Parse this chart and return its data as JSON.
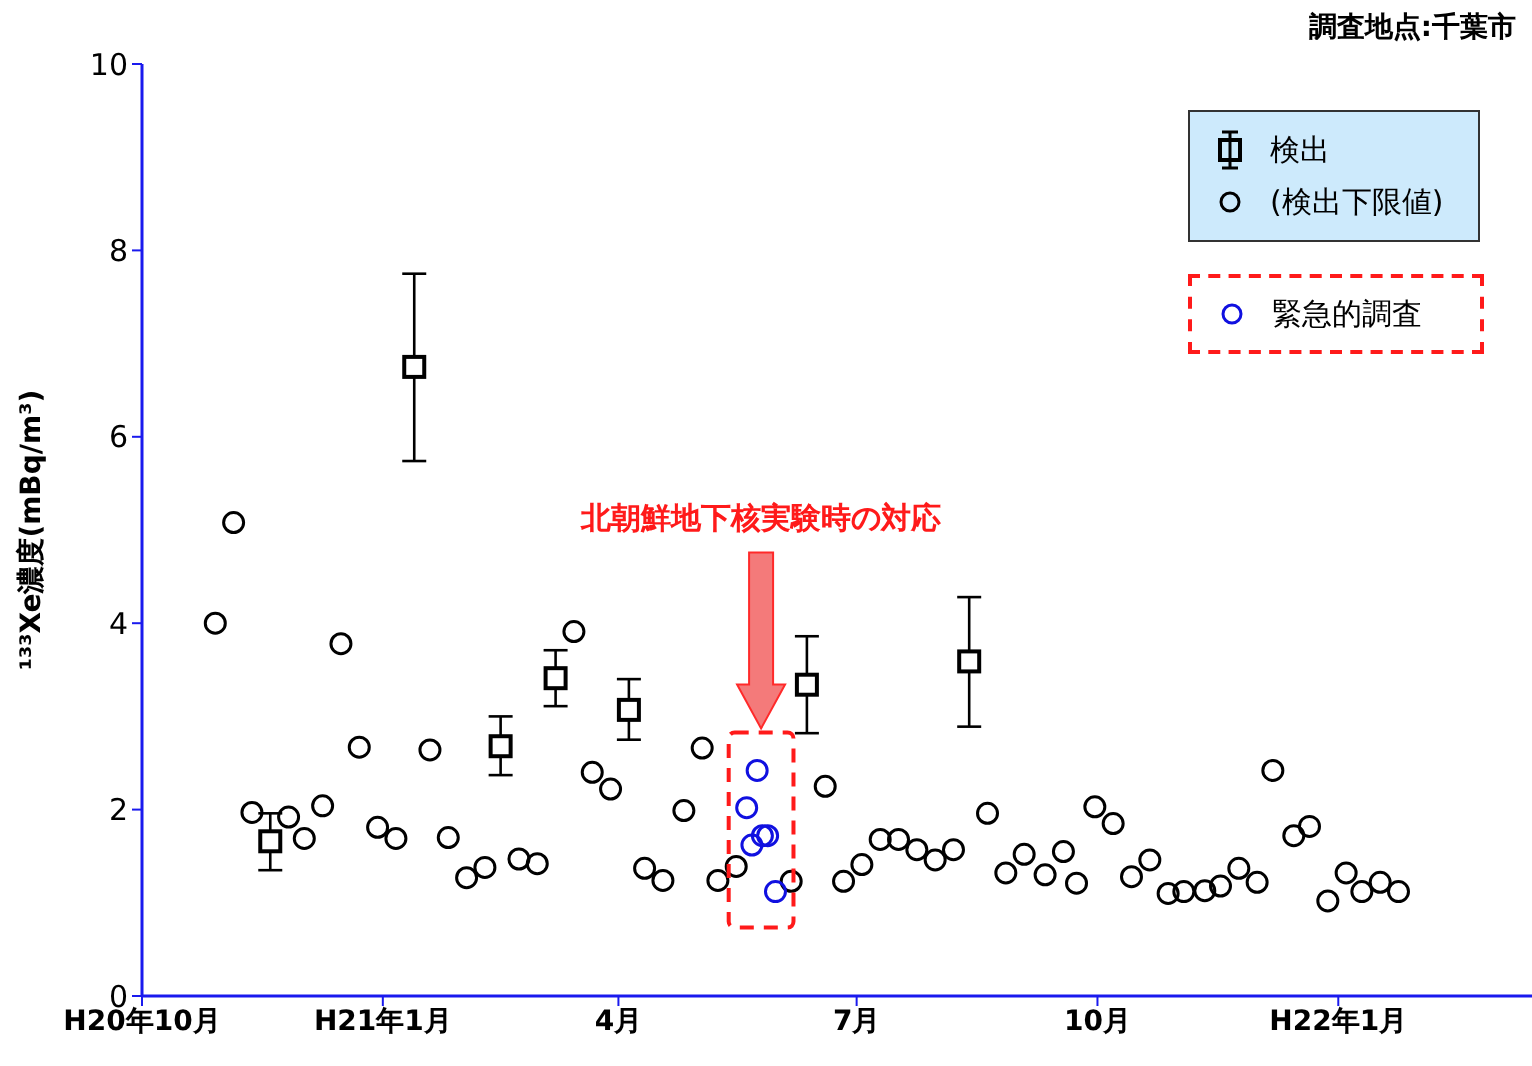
{
  "chart_data": {
    "type": "scatter",
    "ylabel": "¹³³Xe濃度(mBq/m³)",
    "xlim": [
      "2008-10-01",
      "2010-03-16"
    ],
    "xticks": [
      {
        "value": "2008-10-01",
        "label": "H20年10月"
      },
      {
        "value": "2009-01-01",
        "label": "H21年1月"
      },
      {
        "value": "2009-04-01",
        "label": "4月"
      },
      {
        "value": "2009-07-01",
        "label": "7月"
      },
      {
        "value": "2009-10-01",
        "label": "10月"
      },
      {
        "value": "2010-01-01",
        "label": "H22年1月"
      }
    ],
    "ylim": [
      0,
      10
    ],
    "yticks": [
      0,
      2,
      4,
      6,
      8,
      10
    ],
    "legend": "top right",
    "annotations": [
      "調査地点:千葉市",
      "北朝鮮地下核実験時の対応"
    ],
    "series": [
      {
        "name": "検出",
        "color": "#000000",
        "marker": "square",
        "x": [
          "2008-11-19",
          "2009-01-13",
          "2009-02-15",
          "2009-03-08",
          "2009-04-05",
          "2009-06-12",
          "2009-08-13"
        ],
        "values": [
          1.66,
          6.75,
          2.68,
          3.41,
          3.07,
          3.34,
          3.59
        ],
        "errors": [
          [
            1.35,
            1.96
          ],
          [
            5.74,
            7.75
          ],
          [
            2.37,
            3.0
          ],
          [
            3.11,
            3.71
          ],
          [
            2.75,
            3.4
          ],
          [
            2.82,
            3.86
          ],
          [
            2.89,
            4.28
          ]
        ]
      },
      {
        "name": "(検出下限値)",
        "color": "#000000",
        "marker": "circle",
        "x": [
          "2008-10-29",
          "2008-11-05",
          "2008-11-12",
          "2008-11-26",
          "2008-12-02",
          "2008-12-09",
          "2008-12-16",
          "2008-12-23",
          "2008-12-30",
          "2009-01-06",
          "2009-01-19",
          "2009-01-26",
          "2009-02-02",
          "2009-02-09",
          "2009-02-22",
          "2009-03-01",
          "2009-03-15",
          "2009-03-22",
          "2009-03-29",
          "2009-04-11",
          "2009-04-18",
          "2009-04-26",
          "2009-05-03",
          "2009-05-09",
          "2009-05-16",
          "2009-06-06",
          "2009-06-19",
          "2009-06-26",
          "2009-07-03",
          "2009-07-10",
          "2009-07-17",
          "2009-07-24",
          "2009-07-31",
          "2009-08-07",
          "2009-08-20",
          "2009-08-27",
          "2009-09-03",
          "2009-09-11",
          "2009-09-18",
          "2009-09-23",
          "2009-09-30",
          "2009-10-07",
          "2009-10-14",
          "2009-10-21",
          "2009-10-28",
          "2009-11-03",
          "2009-11-11",
          "2009-11-17",
          "2009-11-24",
          "2009-12-01",
          "2009-12-07",
          "2009-12-15",
          "2009-12-21",
          "2009-12-28",
          "2010-01-04",
          "2010-01-10",
          "2010-01-17",
          "2010-01-24"
        ],
        "values": [
          4.0,
          5.08,
          1.97,
          1.92,
          1.69,
          2.04,
          3.78,
          2.67,
          1.81,
          1.69,
          2.64,
          1.7,
          1.27,
          1.38,
          1.47,
          1.42,
          3.91,
          2.4,
          2.22,
          1.37,
          1.24,
          1.99,
          2.66,
          1.24,
          1.39,
          1.23,
          2.25,
          1.23,
          1.41,
          1.68,
          1.68,
          1.57,
          1.46,
          1.57,
          1.96,
          1.32,
          1.52,
          1.3,
          1.55,
          1.21,
          2.03,
          1.85,
          1.28,
          1.46,
          1.1,
          1.12,
          1.13,
          1.18,
          1.37,
          1.22,
          2.42,
          1.72,
          1.82,
          1.02,
          1.32,
          1.12,
          1.22,
          1.12
        ]
      },
      {
        "name": "緊急的調査",
        "color": "#1010e0",
        "marker": "circle",
        "x": [
          "2009-05-20",
          "2009-05-22",
          "2009-05-24",
          "2009-05-26",
          "2009-05-28",
          "2009-05-31"
        ],
        "values": [
          2.02,
          1.62,
          2.42,
          1.72,
          1.72,
          1.12
        ]
      }
    ]
  }
}
